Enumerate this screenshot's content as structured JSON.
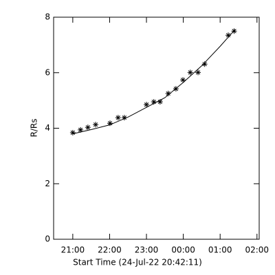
{
  "chart_data": {
    "type": "scatter",
    "xlabel": "Start Time (24-Jul-22 20:42:11)",
    "ylabel": "R/Rs",
    "xlim": [
      20.48,
      26.06
    ],
    "ylim": [
      0,
      8
    ],
    "xticks": [
      {
        "value": 21,
        "label": "21:00"
      },
      {
        "value": 22,
        "label": "22:00"
      },
      {
        "value": 23,
        "label": "23:00"
      },
      {
        "value": 24,
        "label": "00:00"
      },
      {
        "value": 25,
        "label": "01:00"
      },
      {
        "value": 26,
        "label": "02:00"
      }
    ],
    "yticks": [
      0,
      2,
      4,
      6,
      8
    ],
    "color": "#000000",
    "points": {
      "x": [
        21.0,
        21.21,
        21.41,
        21.62,
        22.01,
        22.23,
        22.4,
        23.0,
        23.2,
        23.37,
        23.59,
        23.8,
        23.99,
        24.19,
        24.4,
        24.58,
        25.22,
        25.38
      ],
      "values": [
        3.84,
        3.94,
        4.03,
        4.13,
        4.18,
        4.38,
        4.38,
        4.85,
        4.95,
        4.95,
        5.25,
        5.42,
        5.74,
        6.01,
        6.01,
        6.31,
        7.35,
        7.5
      ]
    },
    "fit": {
      "x": [
        21.0,
        21.5,
        22.0,
        22.5,
        23.0,
        23.5,
        24.0,
        24.5,
        25.0,
        25.4
      ],
      "values": [
        3.8,
        3.95,
        4.12,
        4.4,
        4.75,
        5.1,
        5.65,
        6.25,
        6.95,
        7.55
      ]
    }
  }
}
